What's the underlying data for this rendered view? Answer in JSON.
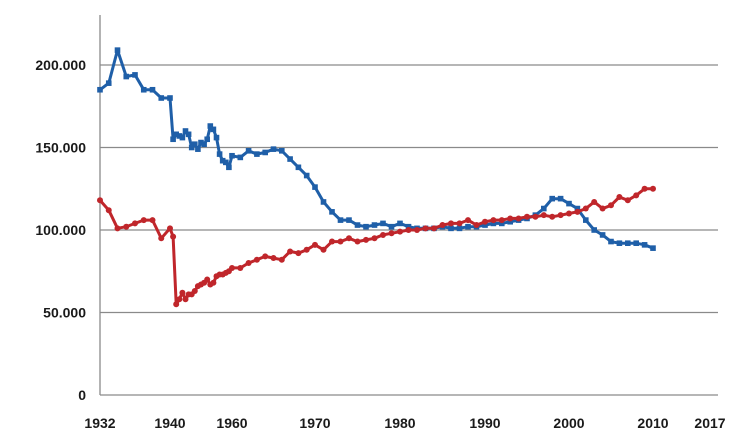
{
  "chart_data": {
    "type": "line",
    "title": "",
    "xlabel": "",
    "ylabel": "",
    "xlim": [
      1932,
      2017
    ],
    "ylim": [
      0,
      220000
    ],
    "grid": true,
    "legend": "none",
    "y_ticks": [
      {
        "value": 0,
        "label": "0"
      },
      {
        "value": 50000,
        "label": "50.000"
      },
      {
        "value": 100000,
        "label": "100.000"
      },
      {
        "value": 150000,
        "label": "150.000"
      },
      {
        "value": 200000,
        "label": "200.000"
      }
    ],
    "x_ticks": [
      {
        "value": 1932,
        "label": "1932"
      },
      {
        "value": 1940,
        "label": "1940"
      },
      {
        "value": 1960,
        "label": "1960"
      },
      {
        "value": 1970,
        "label": "1970"
      },
      {
        "value": 1980,
        "label": "1980"
      },
      {
        "value": 1990,
        "label": "1990"
      },
      {
        "value": 2000,
        "label": "2000"
      },
      {
        "value": 2010,
        "label": "2010"
      },
      {
        "value": 2017,
        "label": "2017"
      }
    ],
    "series": [
      {
        "color": "#1f5fa8",
        "marker": "square",
        "points": [
          [
            1932,
            185000
          ],
          [
            1933,
            189000
          ],
          [
            1934,
            209000
          ],
          [
            1935,
            193000
          ],
          [
            1936,
            194000
          ],
          [
            1937,
            185000
          ],
          [
            1938,
            185000
          ],
          [
            1939,
            180000
          ],
          [
            1940,
            180000
          ],
          [
            1941,
            155000
          ],
          [
            1942,
            158000
          ],
          [
            1943,
            157000
          ],
          [
            1944,
            156000
          ],
          [
            1945,
            160000
          ],
          [
            1946,
            158000
          ],
          [
            1947,
            150000
          ],
          [
            1948,
            152000
          ],
          [
            1949,
            149000
          ],
          [
            1950,
            153000
          ],
          [
            1951,
            152000
          ],
          [
            1952,
            155000
          ],
          [
            1953,
            163000
          ],
          [
            1954,
            161000
          ],
          [
            1955,
            156000
          ],
          [
            1956,
            146000
          ],
          [
            1957,
            142000
          ],
          [
            1958,
            141000
          ],
          [
            1959,
            138000
          ],
          [
            1960,
            145000
          ],
          [
            1961,
            144000
          ],
          [
            1962,
            148000
          ],
          [
            1963,
            146000
          ],
          [
            1964,
            147000
          ],
          [
            1965,
            149000
          ],
          [
            1966,
            148000
          ],
          [
            1967,
            143000
          ],
          [
            1968,
            138000
          ],
          [
            1969,
            133000
          ],
          [
            1970,
            126000
          ],
          [
            1971,
            117000
          ],
          [
            1972,
            111000
          ],
          [
            1973,
            106000
          ],
          [
            1974,
            106000
          ],
          [
            1975,
            103000
          ],
          [
            1976,
            102000
          ],
          [
            1977,
            103000
          ],
          [
            1978,
            104000
          ],
          [
            1979,
            102000
          ],
          [
            1980,
            104000
          ],
          [
            1981,
            102000
          ],
          [
            1982,
            101000
          ],
          [
            1983,
            101000
          ],
          [
            1984,
            101000
          ],
          [
            1985,
            102000
          ],
          [
            1986,
            101000
          ],
          [
            1987,
            101000
          ],
          [
            1988,
            102000
          ],
          [
            1989,
            102000
          ],
          [
            1990,
            103000
          ],
          [
            1991,
            104000
          ],
          [
            1992,
            104000
          ],
          [
            1993,
            105000
          ],
          [
            1994,
            106000
          ],
          [
            1995,
            107000
          ],
          [
            1996,
            109000
          ],
          [
            1997,
            113000
          ],
          [
            1998,
            119000
          ],
          [
            1999,
            119000
          ],
          [
            2000,
            116000
          ],
          [
            2001,
            113000
          ],
          [
            2002,
            106000
          ],
          [
            2003,
            100000
          ],
          [
            2004,
            97000
          ],
          [
            2005,
            93000
          ],
          [
            2006,
            92000
          ],
          [
            2007,
            92000
          ],
          [
            2008,
            92000
          ],
          [
            2009,
            91000
          ],
          [
            2010,
            89000
          ]
        ]
      },
      {
        "color": "#c0262b",
        "marker": "circle",
        "points": [
          [
            1932,
            118000
          ],
          [
            1933,
            112000
          ],
          [
            1934,
            101000
          ],
          [
            1935,
            102000
          ],
          [
            1936,
            104000
          ],
          [
            1937,
            106000
          ],
          [
            1938,
            106000
          ],
          [
            1939,
            95000
          ],
          [
            1940,
            101000
          ],
          [
            1941,
            96000
          ],
          [
            1942,
            55000
          ],
          [
            1943,
            58000
          ],
          [
            1944,
            62000
          ],
          [
            1945,
            58000
          ],
          [
            1946,
            61000
          ],
          [
            1947,
            61000
          ],
          [
            1948,
            63000
          ],
          [
            1949,
            66000
          ],
          [
            1950,
            67000
          ],
          [
            1951,
            68000
          ],
          [
            1952,
            70000
          ],
          [
            1953,
            67000
          ],
          [
            1954,
            68000
          ],
          [
            1955,
            72000
          ],
          [
            1956,
            73000
          ],
          [
            1957,
            73000
          ],
          [
            1958,
            74000
          ],
          [
            1959,
            75000
          ],
          [
            1960,
            77000
          ],
          [
            1961,
            77000
          ],
          [
            1962,
            80000
          ],
          [
            1963,
            82000
          ],
          [
            1964,
            84000
          ],
          [
            1965,
            83000
          ],
          [
            1966,
            82000
          ],
          [
            1967,
            87000
          ],
          [
            1968,
            86000
          ],
          [
            1969,
            88000
          ],
          [
            1970,
            91000
          ],
          [
            1971,
            88000
          ],
          [
            1972,
            93000
          ],
          [
            1973,
            93000
          ],
          [
            1974,
            95000
          ],
          [
            1975,
            93000
          ],
          [
            1976,
            94000
          ],
          [
            1977,
            95000
          ],
          [
            1978,
            97000
          ],
          [
            1979,
            98000
          ],
          [
            1980,
            99000
          ],
          [
            1981,
            100000
          ],
          [
            1982,
            100000
          ],
          [
            1983,
            101000
          ],
          [
            1984,
            101000
          ],
          [
            1985,
            103000
          ],
          [
            1986,
            104000
          ],
          [
            1987,
            104000
          ],
          [
            1988,
            106000
          ],
          [
            1989,
            103000
          ],
          [
            1990,
            105000
          ],
          [
            1991,
            106000
          ],
          [
            1992,
            106000
          ],
          [
            1993,
            107000
          ],
          [
            1994,
            107000
          ],
          [
            1995,
            108000
          ],
          [
            1996,
            108000
          ],
          [
            1997,
            109000
          ],
          [
            1998,
            108000
          ],
          [
            1999,
            109000
          ],
          [
            2000,
            110000
          ],
          [
            2001,
            111000
          ],
          [
            2002,
            113000
          ],
          [
            2003,
            117000
          ],
          [
            2004,
            113000
          ],
          [
            2005,
            115000
          ],
          [
            2006,
            120000
          ],
          [
            2007,
            118000
          ],
          [
            2008,
            121000
          ],
          [
            2009,
            125000
          ],
          [
            2010,
            125000
          ]
        ]
      }
    ]
  }
}
